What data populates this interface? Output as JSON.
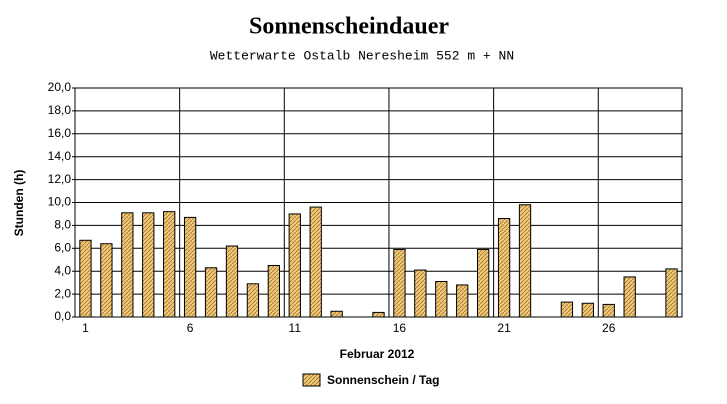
{
  "chart_data": {
    "type": "bar",
    "title": "Sonnenscheindauer",
    "subtitle": "Wetterwarte Ostalb Neresheim 552 m + NN",
    "y_label": "Stunden  (h)",
    "x_label": "Februar 2012",
    "categories": [
      "1",
      null,
      null,
      null,
      null,
      "6",
      null,
      null,
      null,
      null,
      "11",
      null,
      null,
      null,
      null,
      "16",
      null,
      null,
      null,
      null,
      "21",
      null,
      null,
      null,
      null,
      "26",
      null,
      null,
      null
    ],
    "series": [
      {
        "name": "Sonnenschein / Tag",
        "color": "#f0c878",
        "values": [
          6.7,
          6.4,
          9.1,
          9.1,
          9.2,
          8.7,
          4.3,
          6.2,
          2.9,
          4.5,
          9.0,
          9.6,
          0.5,
          0,
          0.4,
          5.9,
          4.1,
          3.1,
          2.8,
          5.9,
          8.6,
          9.8,
          0,
          1.3,
          1.2,
          1.1,
          3.5,
          0,
          4.2
        ]
      }
    ],
    "ylim": [
      0,
      20
    ],
    "yticks": [
      {
        "value": 0,
        "label": "0,0"
      },
      {
        "value": 2,
        "label": "2,0"
      },
      {
        "value": 4,
        "label": "4,0"
      },
      {
        "value": 6,
        "label": "6,0"
      },
      {
        "value": 8,
        "label": "8,0"
      },
      {
        "value": 10,
        "label": "10,0"
      },
      {
        "value": 12,
        "label": "12,0"
      },
      {
        "value": 14,
        "label": "14,0"
      },
      {
        "value": 16,
        "label": "16,0"
      },
      {
        "value": 18,
        "label": "18,0"
      },
      {
        "value": 20,
        "label": "20,0"
      }
    ],
    "grid": true
  }
}
